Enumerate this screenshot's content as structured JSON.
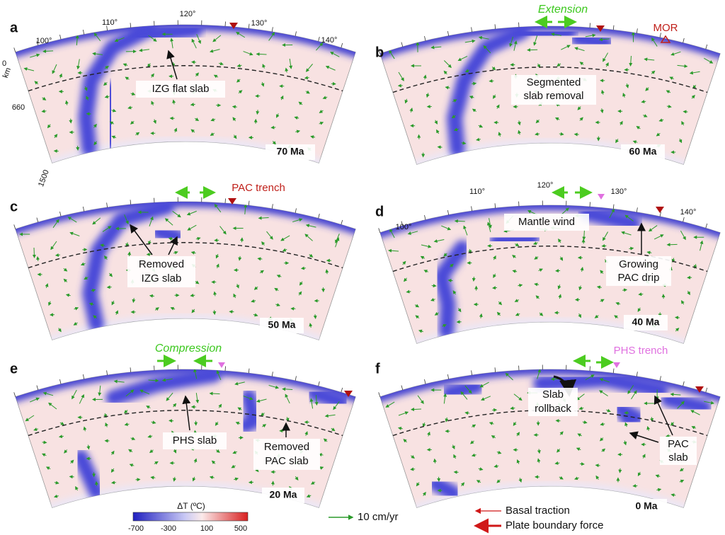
{
  "panels": [
    {
      "letter": "a",
      "age": "70 Ma",
      "longitudes": [
        "100°",
        "110°",
        "120°",
        "130°",
        "140°"
      ],
      "depths": [
        "0",
        "km",
        "660",
        "1500"
      ],
      "labels": [
        "IZG flat slab"
      ]
    },
    {
      "letter": "b",
      "age": "60 Ma",
      "labels": [
        "Extension",
        "MOR",
        "Segmented",
        "slab removal"
      ]
    },
    {
      "letter": "c",
      "age": "50 Ma",
      "labels": [
        "PAC trench",
        "Removed",
        "IZG slab"
      ]
    },
    {
      "letter": "d",
      "age": "40 Ma",
      "longitudes": [
        "100°",
        "110°",
        "120°",
        "130°",
        "140°"
      ],
      "labels": [
        "Mantle wind",
        "Growing",
        "PAC drip"
      ]
    },
    {
      "letter": "e",
      "age": "20 Ma",
      "labels": [
        "Compression",
        "PHS slab",
        "Removed",
        "PAC slab"
      ]
    },
    {
      "letter": "f",
      "age": "0 Ma",
      "labels": [
        "PHS trench",
        "Slab",
        "rollback",
        "PAC",
        "slab"
      ]
    }
  ],
  "colorbar": {
    "title": "ΔT (ºC)",
    "ticks": [
      "-700",
      "-300",
      "100",
      "500"
    ]
  },
  "legend": {
    "velocity": "10 cm/yr",
    "basal": "Basal traction",
    "plate": "Plate boundary force"
  }
}
